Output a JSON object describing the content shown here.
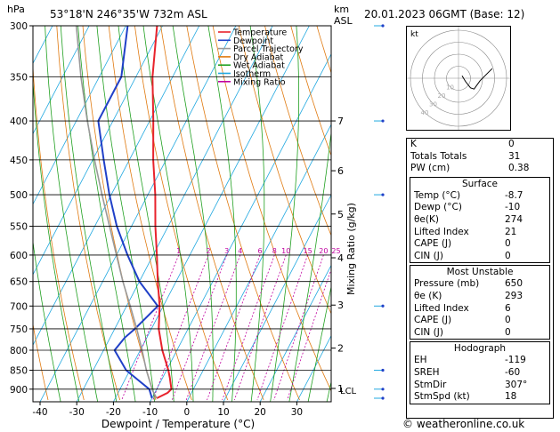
{
  "header": {
    "location": "53°18'N  246°35'W  732m  ASL",
    "datetime": "20.01.2023  06GMT  (Base: 12)",
    "hpa_label": "hPa",
    "km_label": "km",
    "asl_label": "ASL"
  },
  "legend": [
    {
      "label": "Temperature",
      "color": "#e8232c"
    },
    {
      "label": "Dewpoint",
      "color": "#2040c8"
    },
    {
      "label": "Parcel Trajectory",
      "color": "#999999"
    },
    {
      "label": "Dry Adiabat",
      "color": "#e07a10"
    },
    {
      "label": "Wet Adiabat",
      "color": "#20a020"
    },
    {
      "label": "Isotherm",
      "color": "#20a8e0"
    },
    {
      "label": "Mixing Ratio",
      "color": "#c000a0"
    }
  ],
  "chart_data": {
    "type": "line",
    "xlabel": "Dewpoint / Temperature (°C)",
    "ylabel": "Mixing Ratio (g/kg)",
    "pressure_ticks": [
      300,
      350,
      400,
      450,
      500,
      550,
      600,
      650,
      700,
      750,
      800,
      850,
      900
    ],
    "temp_ticks": [
      -40,
      -30,
      -20,
      -10,
      0,
      10,
      20,
      30
    ],
    "km_ticks": [
      {
        "km": "7",
        "p": 400
      },
      {
        "km": "6",
        "p": 465
      },
      {
        "km": "5",
        "p": 530
      },
      {
        "km": "4",
        "p": 605
      },
      {
        "km": "3",
        "p": 698
      },
      {
        "km": "2",
        "p": 795
      },
      {
        "km": "1",
        "p": 898
      }
    ],
    "lcl_label": "LCL",
    "lcl_p": 903,
    "mixing_ratio_labels": [
      "1",
      "2",
      "3",
      "4",
      "6",
      "8",
      "10",
      "15",
      "20",
      "25"
    ],
    "mixing_ratio_values": [
      1,
      2,
      3,
      4,
      6,
      8,
      10,
      15,
      20,
      25
    ],
    "skew_note": "temperature values read along isotherms",
    "series": [
      {
        "name": "Temperature",
        "color": "#e8232c",
        "points": [
          {
            "p": 925,
            "t": -8.7
          },
          {
            "p": 910,
            "t": -6.5
          },
          {
            "p": 900,
            "t": -6.0
          },
          {
            "p": 870,
            "t": -8.0
          },
          {
            "p": 850,
            "t": -9.5
          },
          {
            "p": 800,
            "t": -14.0
          },
          {
            "p": 750,
            "t": -18.0
          },
          {
            "p": 700,
            "t": -21.0
          },
          {
            "p": 650,
            "t": -25.0
          },
          {
            "p": 600,
            "t": -29.0
          },
          {
            "p": 550,
            "t": -33.5
          },
          {
            "p": 500,
            "t": -38.0
          },
          {
            "p": 450,
            "t": -43.5
          },
          {
            "p": 400,
            "t": -49.0
          },
          {
            "p": 350,
            "t": -55.5
          },
          {
            "p": 300,
            "t": -61.5
          }
        ]
      },
      {
        "name": "Dewpoint",
        "color": "#2040c8",
        "points": [
          {
            "p": 925,
            "t": -10.0
          },
          {
            "p": 900,
            "t": -12.0
          },
          {
            "p": 850,
            "t": -21.0
          },
          {
            "p": 800,
            "t": -27.0
          },
          {
            "p": 770,
            "t": -26.0
          },
          {
            "p": 750,
            "t": -24.5
          },
          {
            "p": 700,
            "t": -21.5
          },
          {
            "p": 650,
            "t": -30.0
          },
          {
            "p": 600,
            "t": -37.0
          },
          {
            "p": 550,
            "t": -44.0
          },
          {
            "p": 500,
            "t": -50.5
          },
          {
            "p": 450,
            "t": -57.0
          },
          {
            "p": 400,
            "t": -64.0
          },
          {
            "p": 350,
            "t": -64.0
          },
          {
            "p": 300,
            "t": -69.5
          }
        ]
      },
      {
        "name": "Parcel Trajectory",
        "color": "#999999",
        "points": [
          {
            "p": 925,
            "t": -8.7
          },
          {
            "p": 903,
            "t": -11.0
          },
          {
            "p": 850,
            "t": -15.5
          },
          {
            "p": 800,
            "t": -19.5
          },
          {
            "p": 750,
            "t": -24.0
          },
          {
            "p": 700,
            "t": -29.0
          },
          {
            "p": 650,
            "t": -34.5
          },
          {
            "p": 600,
            "t": -40.0
          },
          {
            "p": 550,
            "t": -46.0
          },
          {
            "p": 500,
            "t": -52.5
          },
          {
            "p": 450,
            "t": -59.5
          },
          {
            "p": 400,
            "t": -67.0
          },
          {
            "p": 350,
            "t": -75.0
          },
          {
            "p": 300,
            "t": -83.5
          }
        ]
      }
    ],
    "hodograph": {
      "label": "kt",
      "ring_labels": [
        "10",
        "20",
        "30",
        "40"
      ],
      "points_kt": [
        [
          3,
          2
        ],
        [
          6,
          -3
        ],
        [
          10,
          -8
        ],
        [
          13,
          -9
        ],
        [
          18,
          -2
        ],
        [
          28,
          8
        ]
      ]
    }
  },
  "indices": {
    "rows": [
      {
        "label": "K",
        "value": "0"
      },
      {
        "label": "Totals Totals",
        "value": "31"
      },
      {
        "label": "PW (cm)",
        "value": "0.38"
      }
    ]
  },
  "surface": {
    "title": "Surface",
    "rows": [
      {
        "label": "Temp (°C)",
        "value": "-8.7"
      },
      {
        "label": "Dewp (°C)",
        "value": "-10"
      },
      {
        "label": "θe(K)",
        "value": "274"
      },
      {
        "label": "Lifted Index",
        "value": "21"
      },
      {
        "label": "CAPE (J)",
        "value": "0"
      },
      {
        "label": "CIN (J)",
        "value": "0"
      }
    ]
  },
  "most_unstable": {
    "title": "Most Unstable",
    "rows": [
      {
        "label": "Pressure (mb)",
        "value": "650"
      },
      {
        "label": "θe (K)",
        "value": "293"
      },
      {
        "label": "Lifted Index",
        "value": "6"
      },
      {
        "label": "CAPE (J)",
        "value": "0"
      },
      {
        "label": "CIN (J)",
        "value": "0"
      }
    ]
  },
  "hodograph_table": {
    "title": "Hodograph",
    "rows": [
      {
        "label": "EH",
        "value": "-119"
      },
      {
        "label": "SREH",
        "value": "-60"
      },
      {
        "label": "StmDir",
        "value": "307°"
      },
      {
        "label": "StmSpd (kt)",
        "value": "18"
      }
    ]
  },
  "footer": {
    "copyright": "© weatheronline.co.uk"
  }
}
